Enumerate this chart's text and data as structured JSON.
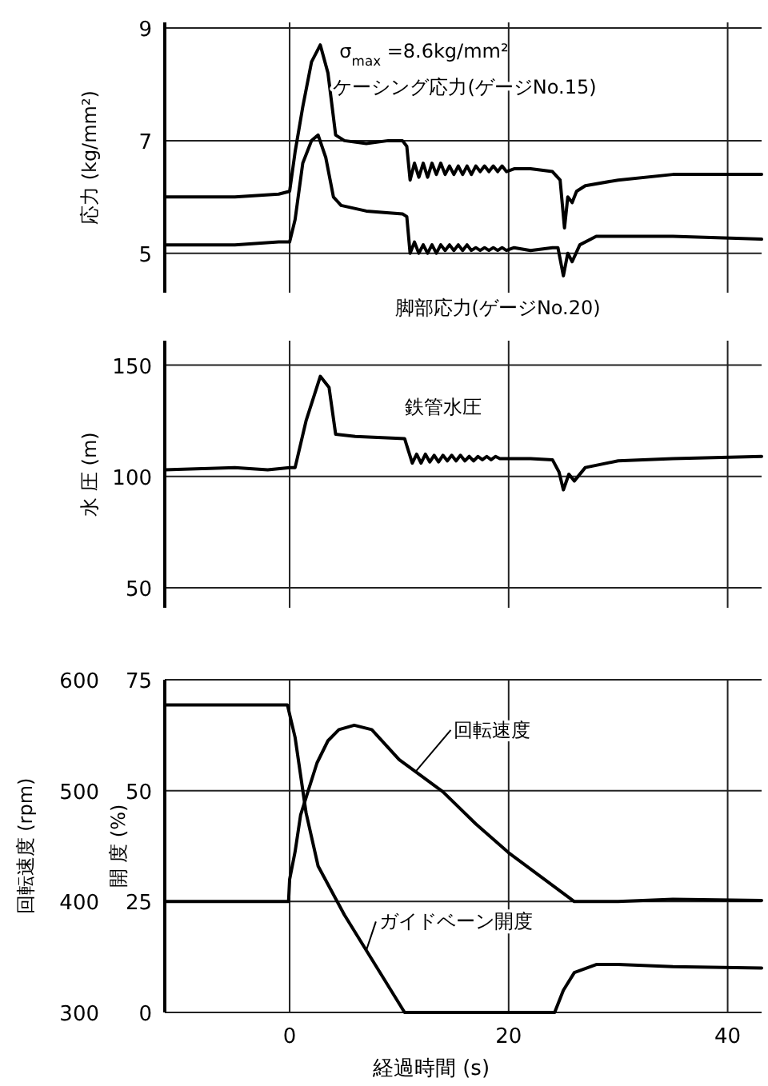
{
  "chart_data": [
    {
      "type": "line",
      "ylabel": "応力 (kg/mm²)",
      "xlim": [
        -11.4,
        43.1
      ],
      "xticks": [
        0,
        20,
        40
      ],
      "ylim": [
        4.3,
        9.1
      ],
      "yticks": [
        5,
        7,
        9
      ],
      "grid": true,
      "tick_labels": "y",
      "annotations": [
        {
          "text": "σ$_{max}$ =8.6kg/mm²",
          "x": 2.8,
          "y": 8.7
        }
      ],
      "series": [
        {
          "name": "ケーシング応力(ゲージNo.15)",
          "color": "#000000",
          "x": [
            -11.4,
            -5,
            -1,
            0,
            0.5,
            1.2,
            2,
            2.8,
            3.5,
            4.2,
            5,
            7,
            9,
            10.3,
            10.7,
            11.0,
            11.4,
            11.8,
            12.2,
            12.6,
            13.0,
            13.4,
            13.8,
            14.2,
            14.6,
            15.0,
            15.4,
            15.8,
            16.2,
            16.6,
            17,
            17.4,
            17.8,
            18.2,
            18.6,
            19,
            19.4,
            19.8,
            20.5,
            22,
            24,
            24.7,
            25.1,
            25.4,
            25.8,
            26.2,
            27,
            30,
            35,
            43.1
          ],
          "values": [
            6.0,
            6.0,
            6.05,
            6.1,
            6.8,
            7.6,
            8.4,
            8.7,
            8.2,
            7.1,
            7.0,
            6.95,
            7.0,
            7.0,
            6.9,
            6.3,
            6.6,
            6.35,
            6.6,
            6.35,
            6.6,
            6.4,
            6.6,
            6.4,
            6.55,
            6.4,
            6.55,
            6.4,
            6.55,
            6.4,
            6.55,
            6.45,
            6.55,
            6.45,
            6.55,
            6.45,
            6.55,
            6.45,
            6.5,
            6.5,
            6.45,
            6.3,
            5.45,
            6.0,
            5.9,
            6.1,
            6.2,
            6.3,
            6.4,
            6.4
          ]
        },
        {
          "name": "脚部応力(ゲージNo.20)",
          "color": "#000000",
          "x": [
            -11.4,
            -5,
            -1,
            0,
            0.5,
            1.2,
            2,
            2.6,
            3.3,
            4,
            4.7,
            7,
            10.3,
            10.7,
            11.0,
            11.4,
            11.8,
            12.2,
            12.6,
            13.0,
            13.4,
            13.8,
            14.2,
            14.6,
            15.0,
            15.4,
            15.8,
            16.2,
            16.6,
            17,
            17.4,
            17.8,
            18.2,
            18.6,
            19,
            19.4,
            19.8,
            20.5,
            22,
            24,
            24.5,
            25,
            25.4,
            25.8,
            26.5,
            28,
            35,
            43.1
          ],
          "values": [
            5.15,
            5.15,
            5.2,
            5.2,
            5.6,
            6.6,
            7.0,
            7.1,
            6.7,
            6.0,
            5.85,
            5.75,
            5.7,
            5.65,
            5.0,
            5.2,
            5.0,
            5.15,
            5.0,
            5.15,
            5.0,
            5.15,
            5.05,
            5.15,
            5.05,
            5.15,
            5.05,
            5.15,
            5.05,
            5.1,
            5.05,
            5.1,
            5.05,
            5.1,
            5.05,
            5.1,
            5.05,
            5.1,
            5.05,
            5.1,
            5.1,
            4.6,
            5.0,
            4.85,
            5.15,
            5.3,
            5.3,
            5.25
          ]
        }
      ]
    },
    {
      "type": "line",
      "ylabel": "水 圧 (m)",
      "xlim": [
        -11.4,
        43.1
      ],
      "xticks": [
        0,
        20,
        40
      ],
      "ylim": [
        41,
        161
      ],
      "yticks": [
        50,
        100,
        150
      ],
      "grid": true,
      "tick_labels": "y",
      "series": [
        {
          "name": "鉄管水圧",
          "color": "#000000",
          "x": [
            -11.4,
            -8,
            -5,
            -2,
            0,
            0.5,
            1.5,
            2.8,
            3.6,
            4.2,
            6,
            10.5,
            11.2,
            11.6,
            12.0,
            12.4,
            12.8,
            13.2,
            13.6,
            14.0,
            14.4,
            14.8,
            15.2,
            15.6,
            16.0,
            16.4,
            16.8,
            17.2,
            17.6,
            18,
            18.4,
            18.8,
            19.2,
            20,
            22,
            24,
            24.6,
            25,
            25.5,
            26,
            27,
            30,
            35,
            43.1
          ],
          "values": [
            103,
            103.5,
            104,
            103,
            104,
            104,
            125,
            145,
            140,
            119,
            118,
            117,
            106,
            110,
            106,
            110,
            106.5,
            109.5,
            106.5,
            109.5,
            107,
            109.5,
            107,
            109.5,
            107,
            109,
            107,
            109,
            107.5,
            109,
            107.5,
            109,
            108,
            108,
            108,
            107.5,
            102,
            94,
            101,
            98,
            104,
            107,
            108,
            109
          ]
        }
      ]
    },
    {
      "type": "line",
      "xlabel": "経過時間 (s)",
      "ylabel": "開 度 (%)",
      "y2label": "回転速度 (rpm)",
      "xlim": [
        -11.4,
        43.1
      ],
      "xticks": [
        0,
        20,
        40
      ],
      "ylim": [
        0,
        75
      ],
      "yticks": [
        0,
        25,
        50,
        75
      ],
      "y2lim": [
        300,
        600
      ],
      "y2ticks": [
        300,
        400,
        500,
        600
      ],
      "grid": true,
      "series": [
        {
          "name": "回転速度",
          "color": "#000000",
          "axis": "y2",
          "x": [
            -11.4,
            -0.1,
            0,
            0.5,
            1,
            1.7,
            2.5,
            3.5,
            4.5,
            5.9,
            7.5,
            10,
            14,
            17,
            20,
            23,
            26,
            30,
            35,
            43.1
          ],
          "values": [
            400,
            400,
            420,
            445,
            478,
            500,
            525,
            545,
            555,
            559,
            555,
            528,
            499,
            470,
            444,
            422,
            400,
            400,
            402,
            401
          ]
        },
        {
          "name": "ガイドベーン開度",
          "color": "#000000",
          "x": [
            -11.4,
            -0.2,
            0.5,
            1.5,
            2.6,
            5,
            8,
            10.5,
            18,
            24.2,
            25,
            26,
            28,
            30,
            35,
            43.1
          ],
          "values": [
            69.3,
            69.3,
            62,
            45,
            33,
            22,
            10,
            0,
            0,
            0,
            5,
            9,
            10.8,
            10.8,
            10.3,
            10
          ]
        }
      ]
    }
  ]
}
